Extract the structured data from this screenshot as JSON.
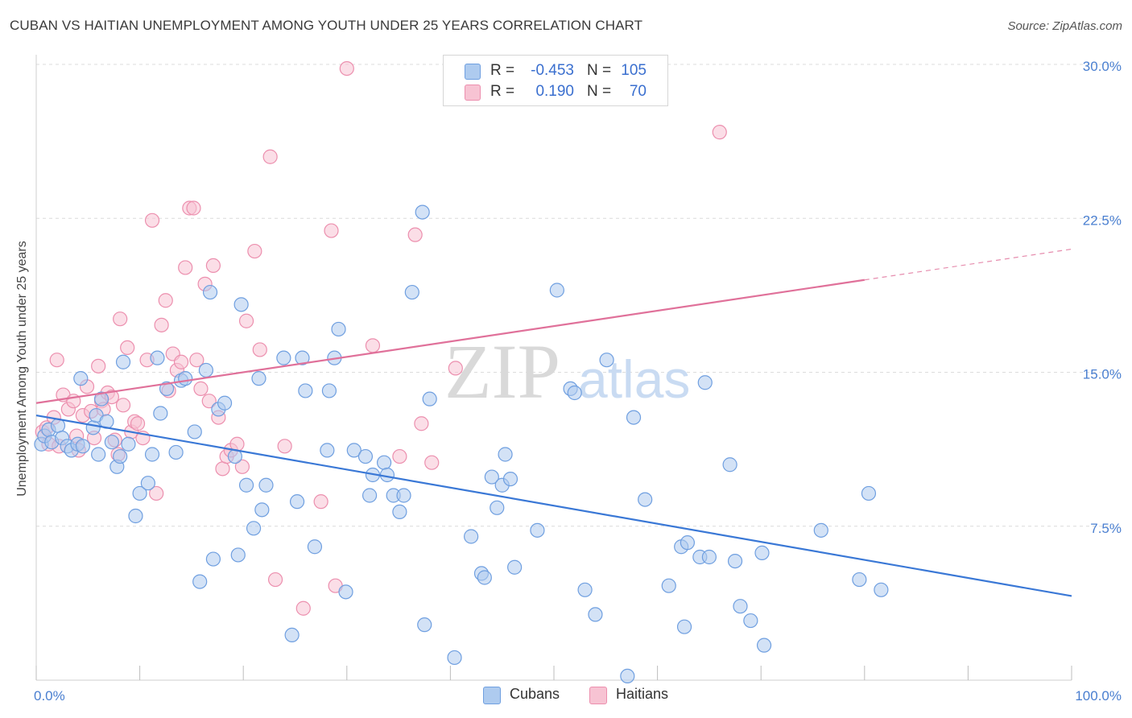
{
  "header": {
    "title": "CUBAN VS HAITIAN UNEMPLOYMENT AMONG YOUTH UNDER 25 YEARS CORRELATION CHART",
    "source": "Source: ZipAtlas.com"
  },
  "watermark": {
    "zip": "ZIP",
    "atlas": "atlas"
  },
  "legend": {
    "rows": [
      {
        "r_label": "R =",
        "r_value": "-0.453",
        "n_label": "N =",
        "n_value": "105",
        "fill": "#aecbef",
        "stroke": "#6f9fe0"
      },
      {
        "r_label": "R =",
        "r_value": "0.190",
        "n_label": "N =",
        "n_value": "70",
        "fill": "#f7c3d3",
        "stroke": "#ec8fae"
      }
    ]
  },
  "bottom_legend": {
    "items": [
      "Cubans",
      "Haitians"
    ]
  },
  "chart_data": {
    "type": "scatter",
    "xlabel": "",
    "ylabel": "Unemployment Among Youth under 25 years",
    "xlim": [
      0,
      100
    ],
    "ylim": [
      0,
      30
    ],
    "x_tick_labels": [
      "0.0%",
      "100.0%"
    ],
    "y_ticks": [
      7.5,
      15.0,
      22.5,
      30.0
    ],
    "y_tick_labels": [
      "7.5%",
      "15.0%",
      "22.5%",
      "30.0%"
    ],
    "grid": "horizontal dashed",
    "colors": {
      "cubans_fill": "#aecbef",
      "cubans_stroke": "#6f9fe0",
      "cubans_line": "#3a78d6",
      "haitians_fill": "#f7c3d3",
      "haitians_stroke": "#ec8fae",
      "haitians_line": "#e0719a"
    },
    "series": [
      {
        "name": "Cubans",
        "trend": {
          "x0": 0,
          "y0": 12.9,
          "x1": 100,
          "y1": 4.1,
          "solid_to": 100
        },
        "points": [
          [
            0.5,
            11.5
          ],
          [
            0.8,
            11.9
          ],
          [
            1.2,
            12.2
          ],
          [
            1.5,
            11.6
          ],
          [
            2.1,
            12.4
          ],
          [
            2.5,
            11.8
          ],
          [
            3.0,
            11.4
          ],
          [
            3.4,
            11.2
          ],
          [
            4.0,
            11.5
          ],
          [
            4.3,
            14.7
          ],
          [
            4.5,
            11.4
          ],
          [
            5.5,
            12.3
          ],
          [
            5.8,
            12.9
          ],
          [
            6.0,
            11.0
          ],
          [
            6.3,
            13.7
          ],
          [
            6.8,
            12.6
          ],
          [
            7.3,
            11.6
          ],
          [
            7.8,
            10.4
          ],
          [
            8.1,
            10.9
          ],
          [
            8.4,
            15.5
          ],
          [
            8.9,
            11.5
          ],
          [
            9.6,
            8.0
          ],
          [
            10.0,
            9.1
          ],
          [
            10.8,
            9.6
          ],
          [
            11.2,
            11.0
          ],
          [
            11.7,
            15.7
          ],
          [
            12.0,
            13.0
          ],
          [
            12.6,
            14.2
          ],
          [
            13.5,
            11.1
          ],
          [
            14.0,
            14.6
          ],
          [
            14.4,
            14.7
          ],
          [
            15.3,
            12.1
          ],
          [
            15.8,
            4.8
          ],
          [
            16.4,
            15.1
          ],
          [
            16.8,
            18.9
          ],
          [
            17.1,
            5.9
          ],
          [
            17.6,
            13.2
          ],
          [
            18.2,
            13.5
          ],
          [
            19.2,
            10.9
          ],
          [
            19.5,
            6.1
          ],
          [
            19.8,
            18.3
          ],
          [
            20.3,
            9.5
          ],
          [
            21.0,
            7.4
          ],
          [
            21.5,
            14.7
          ],
          [
            21.8,
            8.3
          ],
          [
            22.2,
            9.5
          ],
          [
            23.9,
            15.7
          ],
          [
            24.7,
            2.2
          ],
          [
            25.2,
            8.7
          ],
          [
            25.7,
            15.7
          ],
          [
            26.0,
            14.1
          ],
          [
            26.9,
            6.5
          ],
          [
            28.1,
            11.2
          ],
          [
            28.3,
            14.1
          ],
          [
            28.8,
            15.7
          ],
          [
            29.2,
            17.1
          ],
          [
            29.9,
            4.3
          ],
          [
            30.7,
            11.2
          ],
          [
            31.8,
            10.9
          ],
          [
            32.2,
            9.0
          ],
          [
            32.5,
            10.0
          ],
          [
            33.6,
            10.6
          ],
          [
            33.9,
            10.0
          ],
          [
            34.5,
            9.0
          ],
          [
            35.1,
            8.2
          ],
          [
            35.5,
            9.0
          ],
          [
            36.3,
            18.9
          ],
          [
            37.3,
            22.8
          ],
          [
            37.5,
            2.7
          ],
          [
            38.0,
            13.7
          ],
          [
            40.4,
            1.1
          ],
          [
            42.0,
            7.0
          ],
          [
            43.0,
            5.2
          ],
          [
            43.3,
            5.0
          ],
          [
            44.0,
            9.9
          ],
          [
            44.5,
            8.4
          ],
          [
            45.0,
            9.5
          ],
          [
            45.3,
            11.0
          ],
          [
            45.8,
            9.8
          ],
          [
            46.2,
            5.5
          ],
          [
            48.4,
            7.3
          ],
          [
            50.3,
            19.0
          ],
          [
            51.6,
            14.2
          ],
          [
            52.0,
            14.0
          ],
          [
            53.0,
            4.4
          ],
          [
            54.0,
            3.2
          ],
          [
            55.1,
            15.6
          ],
          [
            57.1,
            0.2
          ],
          [
            57.7,
            12.8
          ],
          [
            58.8,
            8.8
          ],
          [
            61.1,
            4.6
          ],
          [
            62.3,
            6.5
          ],
          [
            62.6,
            2.6
          ],
          [
            62.9,
            6.7
          ],
          [
            64.1,
            6.0
          ],
          [
            64.6,
            14.5
          ],
          [
            65.0,
            6.0
          ],
          [
            67.0,
            10.5
          ],
          [
            67.5,
            5.8
          ],
          [
            68.0,
            3.6
          ],
          [
            69.0,
            2.9
          ],
          [
            70.1,
            6.2
          ],
          [
            70.3,
            1.7
          ],
          [
            75.8,
            7.3
          ],
          [
            79.5,
            4.9
          ],
          [
            80.4,
            9.1
          ],
          [
            81.6,
            4.4
          ]
        ]
      },
      {
        "name": "Haitians",
        "trend": {
          "x0": 0,
          "y0": 13.5,
          "x1": 100,
          "y1": 21.0,
          "solid_to": 80
        },
        "points": [
          [
            0.6,
            12.1
          ],
          [
            1.0,
            12.3
          ],
          [
            1.2,
            11.5
          ],
          [
            1.7,
            12.8
          ],
          [
            2.0,
            15.6
          ],
          [
            2.2,
            11.4
          ],
          [
            2.6,
            13.9
          ],
          [
            3.1,
            13.2
          ],
          [
            3.6,
            13.6
          ],
          [
            3.9,
            11.9
          ],
          [
            4.1,
            11.2
          ],
          [
            4.5,
            12.9
          ],
          [
            4.9,
            14.3
          ],
          [
            5.3,
            13.1
          ],
          [
            5.6,
            11.8
          ],
          [
            6.0,
            15.3
          ],
          [
            6.3,
            13.6
          ],
          [
            6.5,
            13.2
          ],
          [
            6.9,
            14.0
          ],
          [
            7.3,
            13.8
          ],
          [
            7.6,
            11.7
          ],
          [
            7.9,
            11.0
          ],
          [
            8.1,
            17.6
          ],
          [
            8.4,
            13.4
          ],
          [
            8.8,
            16.2
          ],
          [
            9.2,
            12.1
          ],
          [
            9.5,
            12.6
          ],
          [
            9.8,
            12.5
          ],
          [
            10.3,
            11.8
          ],
          [
            10.7,
            15.6
          ],
          [
            11.2,
            22.4
          ],
          [
            11.6,
            9.1
          ],
          [
            12.1,
            17.3
          ],
          [
            12.5,
            18.5
          ],
          [
            12.8,
            14.1
          ],
          [
            13.2,
            15.9
          ],
          [
            13.6,
            15.1
          ],
          [
            14.0,
            15.5
          ],
          [
            14.4,
            20.1
          ],
          [
            14.8,
            23.0
          ],
          [
            15.2,
            23.0
          ],
          [
            15.5,
            15.6
          ],
          [
            15.9,
            14.2
          ],
          [
            16.3,
            19.3
          ],
          [
            16.7,
            13.6
          ],
          [
            17.1,
            20.2
          ],
          [
            17.6,
            12.8
          ],
          [
            18.0,
            10.3
          ],
          [
            18.4,
            10.9
          ],
          [
            18.8,
            11.2
          ],
          [
            19.4,
            11.5
          ],
          [
            19.9,
            10.4
          ],
          [
            20.3,
            17.5
          ],
          [
            21.1,
            20.9
          ],
          [
            21.6,
            16.1
          ],
          [
            22.6,
            25.5
          ],
          [
            23.1,
            4.9
          ],
          [
            24.0,
            11.4
          ],
          [
            25.8,
            3.5
          ],
          [
            27.5,
            8.7
          ],
          [
            28.5,
            21.9
          ],
          [
            28.9,
            4.6
          ],
          [
            30.0,
            29.8
          ],
          [
            32.5,
            16.3
          ],
          [
            35.1,
            10.9
          ],
          [
            36.6,
            21.7
          ],
          [
            37.2,
            12.5
          ],
          [
            38.2,
            10.6
          ],
          [
            40.5,
            15.2
          ],
          [
            66.0,
            26.7
          ]
        ]
      }
    ]
  }
}
